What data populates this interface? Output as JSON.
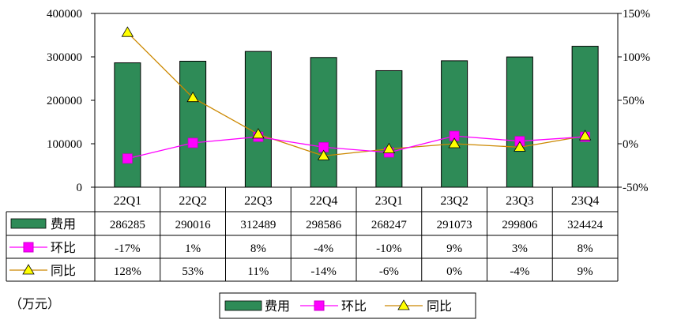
{
  "chart_data": {
    "type": "bar",
    "categories": [
      "22Q1",
      "22Q2",
      "22Q3",
      "22Q4",
      "23Q1",
      "23Q2",
      "23Q3",
      "23Q4"
    ],
    "series": [
      {
        "name": "费用",
        "type": "bar",
        "axis": "left",
        "color": "#2e8b57",
        "values": [
          286285,
          290016,
          312489,
          298586,
          268247,
          291073,
          299806,
          324424
        ],
        "labels": [
          "286285",
          "290016",
          "312489",
          "298586",
          "268247",
          "291073",
          "299806",
          "324424"
        ]
      },
      {
        "name": "环比",
        "type": "line",
        "axis": "right",
        "color": "#ff00ff",
        "values": [
          -17,
          1,
          8,
          -4,
          -10,
          9,
          3,
          8
        ],
        "labels": [
          "-17%",
          "1%",
          "8%",
          "-4%",
          "-10%",
          "9%",
          "3%",
          "8%"
        ]
      },
      {
        "name": "同比",
        "type": "line",
        "axis": "right",
        "color": "#cc8800",
        "values": [
          128,
          53,
          11,
          -14,
          -6,
          0,
          -4,
          9
        ],
        "labels": [
          "128%",
          "53%",
          "11%",
          "-14%",
          "-6%",
          "0%",
          "-4%",
          "9%"
        ]
      }
    ],
    "y_left": {
      "ylim": [
        0,
        400000
      ],
      "ticks": [
        "0",
        "100000",
        "200000",
        "300000",
        "400000"
      ]
    },
    "y_right": {
      "ylim": [
        -50,
        150
      ],
      "ticks": [
        "-50%",
        "0%",
        "50%",
        "100%",
        "150%"
      ]
    },
    "unit_label": "（万元）",
    "legend": [
      "费用",
      "环比",
      "同比"
    ],
    "legend_position": "bottom-center",
    "grid": false
  }
}
